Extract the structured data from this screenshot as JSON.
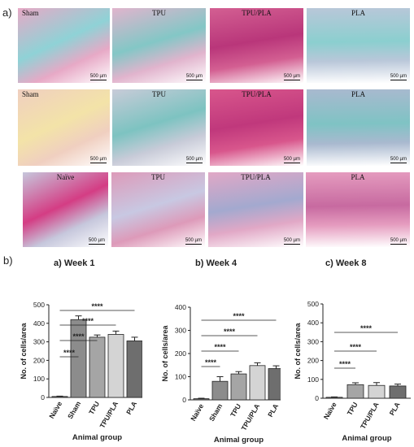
{
  "figure": {
    "panel_a_label": "a)",
    "panel_b_label": "b)",
    "scale_text": "500 µm",
    "micrograph_rows": [
      [
        "Sham",
        "TPU",
        "TPU/PLA",
        "PLA"
      ],
      [
        "Sham",
        "TPU",
        "TPU/PLA",
        "PLA"
      ],
      [
        "Naïve",
        "TPU",
        "TPU/PLA",
        "PLA"
      ]
    ],
    "significance_text": "****"
  },
  "chart_data": [
    {
      "type": "bar",
      "title": "a) Week 1",
      "xlabel": "Animal group",
      "ylabel": "No. of cells/area",
      "ylim": [
        0,
        500
      ],
      "yticks": [
        0,
        100,
        200,
        300,
        400,
        500
      ],
      "categories": [
        "Naïve",
        "Sham",
        "TPU",
        "TPU/PLA",
        "PLA"
      ],
      "values": [
        5,
        420,
        325,
        340,
        305
      ],
      "errors": [
        2,
        20,
        12,
        18,
        20
      ],
      "bar_colors": [
        "#777777",
        "#8c8c8c",
        "#a5a5a5",
        "#d4d4d4",
        "#6e6e6e"
      ],
      "significance": [
        "****",
        "****",
        "****",
        "****"
      ]
    },
    {
      "type": "bar",
      "title": "b) Week 4",
      "xlabel": "Animal group",
      "ylabel": "No. of cells/area",
      "ylim": [
        0,
        400
      ],
      "yticks": [
        0,
        100,
        200,
        300,
        400
      ],
      "categories": [
        "Naïve",
        "Sham",
        "TPU",
        "TPU/PLA",
        "PLA"
      ],
      "values": [
        5,
        80,
        112,
        148,
        135
      ],
      "errors": [
        2,
        20,
        10,
        12,
        12
      ],
      "bar_colors": [
        "#777777",
        "#8c8c8c",
        "#a5a5a5",
        "#d4d4d4",
        "#6e6e6e"
      ],
      "significance": [
        "****",
        "****",
        "****",
        "****"
      ]
    },
    {
      "type": "bar",
      "title": "c) Week 8",
      "xlabel": "Animal group",
      "ylabel": "No. of cells/area",
      "ylim": [
        0,
        500
      ],
      "yticks": [
        0,
        100,
        200,
        300,
        400,
        500
      ],
      "categories": [
        "Naïve",
        "TPU",
        "TPU/PLA",
        "PLA"
      ],
      "values": [
        5,
        72,
        68,
        65
      ],
      "errors": [
        2,
        10,
        15,
        10
      ],
      "bar_colors": [
        "#777777",
        "#a5a5a5",
        "#d4d4d4",
        "#6e6e6e"
      ],
      "significance": [
        "****",
        "****",
        "****"
      ]
    }
  ]
}
